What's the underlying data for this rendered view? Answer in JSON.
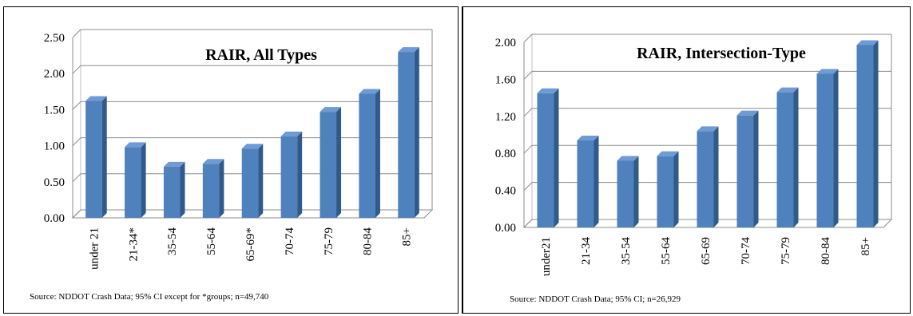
{
  "chart_data": [
    {
      "type": "bar",
      "title": "RAIR, All Types",
      "categories": [
        "under 21",
        "21-34*",
        "35-54",
        "55-64",
        "65-69*",
        "70-74",
        "75-79",
        "80-84",
        "85+"
      ],
      "values": [
        1.62,
        0.98,
        0.71,
        0.75,
        0.96,
        1.13,
        1.47,
        1.72,
        2.3
      ],
      "ylim": [
        0,
        2.5
      ],
      "yticks": [
        "0.00",
        "0.50",
        "1.00",
        "1.50",
        "2.00",
        "2.50"
      ],
      "ytick_values": [
        0,
        0.5,
        1.0,
        1.5,
        2.0,
        2.5
      ],
      "grid": true,
      "bar_color": "#4f81bd",
      "source": "Source: NDDOT Crash Data; 95% CI except for *groups; n=49,740"
    },
    {
      "type": "bar",
      "title": "RAIR, Intersection-Type",
      "categories": [
        "under21",
        "21-34",
        "35-54",
        "55-64",
        "65-69",
        "70-74",
        "75-79",
        "80-84",
        "85+"
      ],
      "values": [
        1.45,
        0.94,
        0.72,
        0.77,
        1.04,
        1.21,
        1.46,
        1.66,
        1.97
      ],
      "ylim": [
        0,
        2.0
      ],
      "yticks": [
        "0.00",
        "0.40",
        "0.80",
        "1.20",
        "1.60",
        "2.00"
      ],
      "ytick_values": [
        0,
        0.4,
        0.8,
        1.2,
        1.6,
        2.0
      ],
      "grid": true,
      "bar_color": "#4f81bd",
      "source": "Source: NDDOT Crash Data; 95% CI; n=26,929"
    }
  ]
}
